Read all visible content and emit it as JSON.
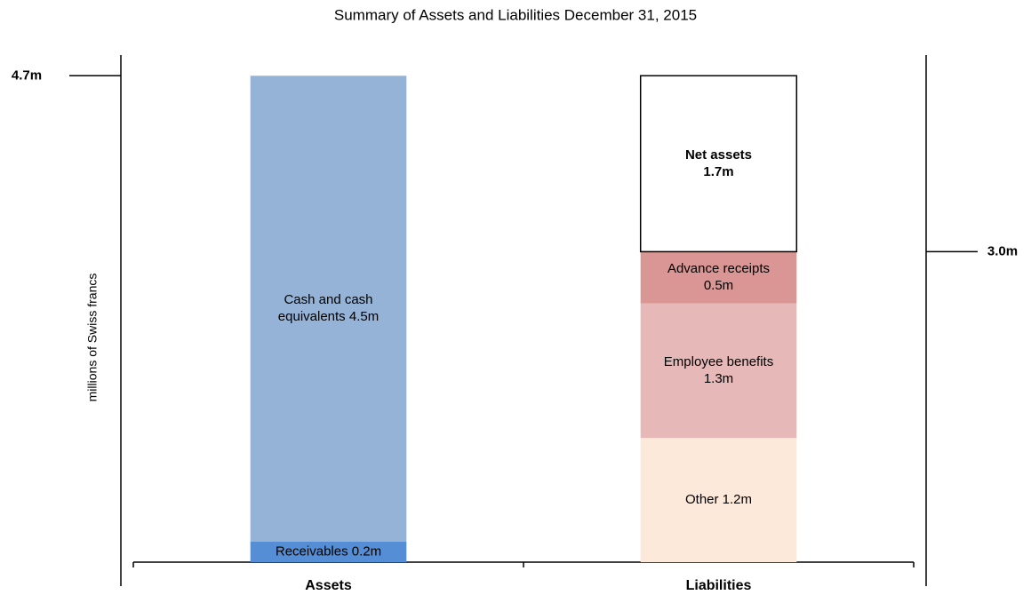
{
  "chart_data": {
    "type": "stacked_bar",
    "title": "Summary of Assets and Liabilities December 31, 2015",
    "y_label": "millions of Swiss francs",
    "categories": [
      "Assets",
      "Liabilities"
    ],
    "series": [
      {
        "color": "#558ed5",
        "values": [
          0.2,
          null
        ],
        "value_labels": [
          "Receivables 0.2m",
          null
        ]
      },
      {
        "color": "#95b3d7",
        "values": [
          4.5,
          null
        ],
        "value_labels": [
          "Cash and cash\nequivalents 4.5m",
          null
        ]
      },
      {
        "color": "#fde9d9",
        "values": [
          null,
          1.2
        ],
        "value_labels": [
          null,
          "Other 1.2m"
        ]
      },
      {
        "color": "#e6b9b8",
        "values": [
          null,
          1.3
        ],
        "value_labels": [
          null,
          "Employee benefits\n1.3m"
        ]
      },
      {
        "color": "#d99694",
        "values": [
          null,
          0.5
        ],
        "value_labels": [
          null,
          "Advance receipts\n0.5m"
        ]
      },
      {
        "color": "#ffffff",
        "border": "#000000",
        "bold": true,
        "values": [
          null,
          1.7
        ],
        "value_labels": [
          null,
          "Net assets\n1.7m"
        ]
      }
    ],
    "ylim": [
      0,
      4.9
    ],
    "yticks": [
      {
        "value": 4.7,
        "label": "4.7m"
      }
    ],
    "y2lim": [
      0,
      4.9
    ],
    "y2ticks": [
      {
        "value": 3.0,
        "label": "3.0m"
      }
    ]
  }
}
